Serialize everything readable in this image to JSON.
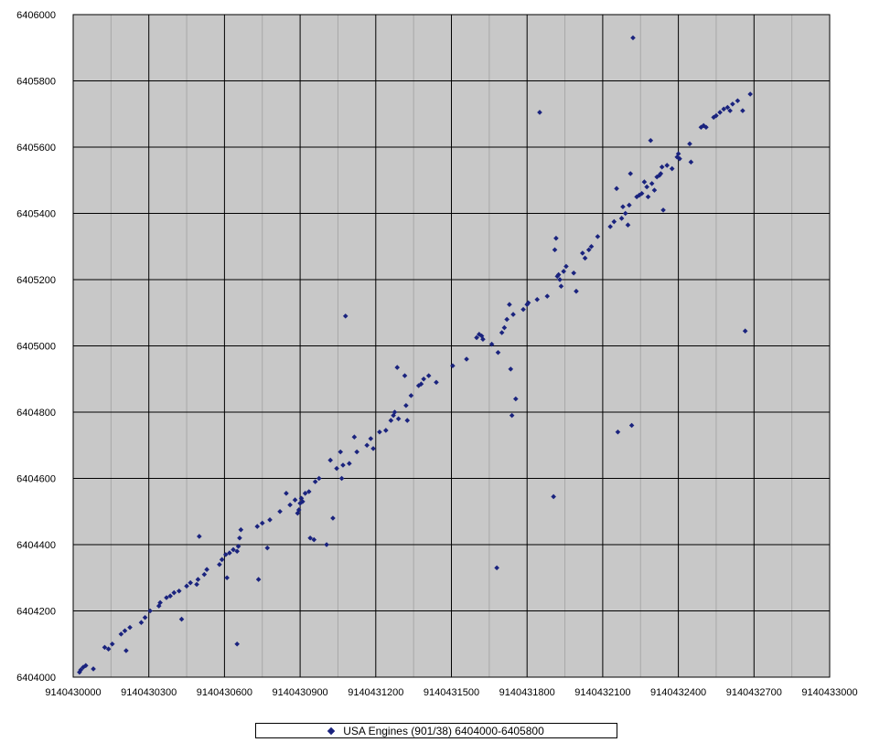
{
  "chart_data": {
    "type": "scatter",
    "title": "",
    "xlabel": "",
    "ylabel": "",
    "xlim": [
      9140430000,
      9140433000
    ],
    "ylim": [
      6404000,
      6406000
    ],
    "x_ticks": [
      "9140430000",
      "9140430300",
      "9140430600",
      "9140430900",
      "9140431200",
      "9140431500",
      "9140431800",
      "9140432100",
      "9140432400",
      "9140432700",
      "9140433000"
    ],
    "y_ticks": [
      "6404000",
      "6404200",
      "6404400",
      "6404600",
      "6404800",
      "6405000",
      "6405200",
      "6405400",
      "6405600",
      "6405800",
      "6406000"
    ],
    "grid": true,
    "legend": "bottom",
    "colors": {
      "marker": "#1a237e",
      "plot_bg": "#c8c8c8",
      "grid_major": "#000000",
      "grid_minor": "#a8a8a8"
    },
    "series": [
      {
        "name": "USA Engines (901/38) 6404000-6405800",
        "points": [
          [
            9140430025,
            6404015
          ],
          [
            9140430030,
            6404022
          ],
          [
            9140430040,
            6404030
          ],
          [
            9140430050,
            6404035
          ],
          [
            9140430080,
            6404025
          ],
          [
            9140430125,
            6404090
          ],
          [
            9140430140,
            6404085
          ],
          [
            9140430155,
            6404100
          ],
          [
            9140430190,
            6404130
          ],
          [
            9140430205,
            6404140
          ],
          [
            9140430225,
            6404150
          ],
          [
            9140430210,
            6404080
          ],
          [
            9140430270,
            6404165
          ],
          [
            9140430285,
            6404180
          ],
          [
            9140430305,
            6404200
          ],
          [
            9140430340,
            6404215
          ],
          [
            9140430345,
            6404225
          ],
          [
            9140430370,
            6404240
          ],
          [
            9140430385,
            6404245
          ],
          [
            9140430400,
            6404255
          ],
          [
            9140430420,
            6404260
          ],
          [
            9140430430,
            6404175
          ],
          [
            9140430450,
            6404275
          ],
          [
            9140430465,
            6404285
          ],
          [
            9140430490,
            6404280
          ],
          [
            9140430495,
            6404295
          ],
          [
            9140430500,
            6404425
          ],
          [
            9140430520,
            6404310
          ],
          [
            9140430530,
            6404325
          ],
          [
            9140430580,
            6404340
          ],
          [
            9140430590,
            6404355
          ],
          [
            9140430605,
            6404370
          ],
          [
            9140430620,
            6404375
          ],
          [
            9140430610,
            6404300
          ],
          [
            9140430635,
            6404385
          ],
          [
            9140430650,
            6404380
          ],
          [
            9140430655,
            6404395
          ],
          [
            9140430660,
            6404420
          ],
          [
            9140430665,
            6404445
          ],
          [
            9140430650,
            6404100
          ],
          [
            9140430730,
            6404455
          ],
          [
            9140430735,
            6404295
          ],
          [
            9140430750,
            6404465
          ],
          [
            9140430770,
            6404390
          ],
          [
            9140430780,
            6404475
          ],
          [
            9140430820,
            6404500
          ],
          [
            9140430845,
            6404555
          ],
          [
            9140430860,
            6404520
          ],
          [
            9140430880,
            6404535
          ],
          [
            9140430890,
            6404495
          ],
          [
            9140430895,
            6404505
          ],
          [
            9140430900,
            6404525
          ],
          [
            9140430905,
            6404540
          ],
          [
            9140430910,
            6404530
          ],
          [
            9140430920,
            6404555
          ],
          [
            9140430935,
            6404560
          ],
          [
            9140430940,
            6404420
          ],
          [
            9140430955,
            6404415
          ],
          [
            9140430960,
            6404590
          ],
          [
            9140430975,
            6404600
          ],
          [
            9140431005,
            6404400
          ],
          [
            9140431020,
            6404655
          ],
          [
            9140431030,
            6404480
          ],
          [
            9140431045,
            6404630
          ],
          [
            9140431060,
            6404680
          ],
          [
            9140431065,
            6404600
          ],
          [
            9140431070,
            6404640
          ],
          [
            9140431080,
            6405090
          ],
          [
            9140431095,
            6404645
          ],
          [
            9140431115,
            6404725
          ],
          [
            9140431125,
            6404680
          ],
          [
            9140431165,
            6404700
          ],
          [
            9140431180,
            6404720
          ],
          [
            9140431190,
            6404690
          ],
          [
            9140431215,
            6404740
          ],
          [
            9140431240,
            6404745
          ],
          [
            9140431260,
            6404775
          ],
          [
            9140431270,
            6404790
          ],
          [
            9140431275,
            6404800
          ],
          [
            9140431285,
            6404935
          ],
          [
            9140431290,
            6404780
          ],
          [
            9140431315,
            6404910
          ],
          [
            9140431320,
            6404820
          ],
          [
            9140431325,
            6404775
          ],
          [
            9140431340,
            6404850
          ],
          [
            9140431370,
            6404880
          ],
          [
            9140431380,
            6404885
          ],
          [
            9140431390,
            6404900
          ],
          [
            9140431410,
            6404910
          ],
          [
            9140431440,
            6404890
          ],
          [
            9140431505,
            6404940
          ],
          [
            9140431560,
            6404960
          ],
          [
            9140431600,
            6405025
          ],
          [
            9140431610,
            6405035
          ],
          [
            9140431620,
            6405030
          ],
          [
            9140431625,
            6405020
          ],
          [
            9140431660,
            6405005
          ],
          [
            9140431680,
            6404330
          ],
          [
            9140431685,
            6404980
          ],
          [
            9140431700,
            6405040
          ],
          [
            9140431710,
            6405055
          ],
          [
            9140431720,
            6405080
          ],
          [
            9140431730,
            6405125
          ],
          [
            9140431735,
            6404930
          ],
          [
            9140431740,
            6404790
          ],
          [
            9140431745,
            6405095
          ],
          [
            9140431755,
            6404840
          ],
          [
            9140431785,
            6405110
          ],
          [
            9140431800,
            6405125
          ],
          [
            9140431805,
            6405130
          ],
          [
            9140431840,
            6405140
          ],
          [
            9140431850,
            6405705
          ],
          [
            9140431880,
            6405150
          ],
          [
            9140431905,
            6404545
          ],
          [
            9140431910,
            6405290
          ],
          [
            9140431915,
            6405325
          ],
          [
            9140431920,
            6405210
          ],
          [
            9140431925,
            6405215
          ],
          [
            9140431930,
            6405200
          ],
          [
            9140431935,
            6405180
          ],
          [
            9140431945,
            6405225
          ],
          [
            9140431955,
            6405240
          ],
          [
            9140431985,
            6405220
          ],
          [
            9140431995,
            6405165
          ],
          [
            9140432020,
            6405280
          ],
          [
            9140432030,
            6405265
          ],
          [
            9140432045,
            6405290
          ],
          [
            9140432055,
            6405300
          ],
          [
            9140432080,
            6405330
          ],
          [
            9140432130,
            6405360
          ],
          [
            9140432145,
            6405375
          ],
          [
            9140432155,
            6405475
          ],
          [
            9140432160,
            6404740
          ],
          [
            9140432175,
            6405385
          ],
          [
            9140432180,
            6405420
          ],
          [
            9140432190,
            6405400
          ],
          [
            9140432200,
            6405365
          ],
          [
            9140432205,
            6405425
          ],
          [
            9140432210,
            6405520
          ],
          [
            9140432215,
            6404760
          ],
          [
            9140432220,
            6405930
          ],
          [
            9140432235,
            6405450
          ],
          [
            9140432245,
            6405455
          ],
          [
            9140432255,
            6405460
          ],
          [
            9140432265,
            6405495
          ],
          [
            9140432275,
            6405480
          ],
          [
            9140432280,
            6405450
          ],
          [
            9140432290,
            6405620
          ],
          [
            9140432295,
            6405490
          ],
          [
            9140432305,
            6405470
          ],
          [
            9140432315,
            6405510
          ],
          [
            9140432325,
            6405515
          ],
          [
            9140432330,
            6405520
          ],
          [
            9140432335,
            6405540
          ],
          [
            9140432340,
            6405410
          ],
          [
            9140432355,
            6405545
          ],
          [
            9140432375,
            6405535
          ],
          [
            9140432395,
            6405570
          ],
          [
            9140432400,
            6405580
          ],
          [
            9140432405,
            6405565
          ],
          [
            9140432445,
            6405610
          ],
          [
            9140432450,
            6405555
          ],
          [
            9140432490,
            6405660
          ],
          [
            9140432500,
            6405665
          ],
          [
            9140432510,
            6405660
          ],
          [
            9140432540,
            6405690
          ],
          [
            9140432550,
            6405695
          ],
          [
            9140432565,
            6405705
          ],
          [
            9140432580,
            6405715
          ],
          [
            9140432595,
            6405720
          ],
          [
            9140432605,
            6405710
          ],
          [
            9140432615,
            6405730
          ],
          [
            9140432635,
            6405740
          ],
          [
            9140432655,
            6405710
          ],
          [
            9140432665,
            6405045
          ],
          [
            9140432685,
            6405760
          ]
        ]
      }
    ]
  }
}
